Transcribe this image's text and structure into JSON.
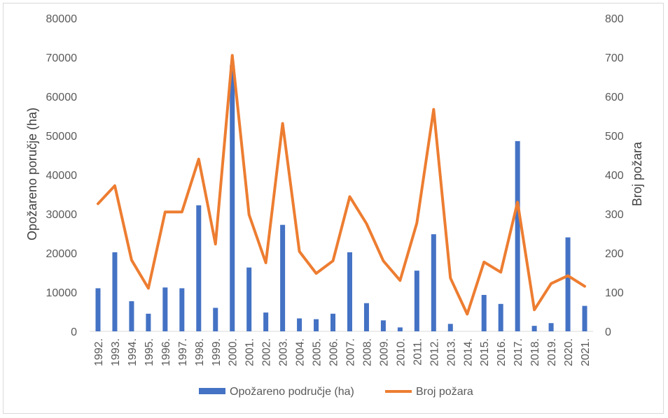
{
  "chart_data": {
    "type": "bar",
    "categories": [
      "1992.",
      "1993.",
      "1994.",
      "1995.",
      "1996.",
      "1997.",
      "1998.",
      "1999.",
      "2000.",
      "2001.",
      "2002.",
      "2003.",
      "2004.",
      "2005.",
      "2006.",
      "2007.",
      "2008.",
      "2009.",
      "2010.",
      "2011.",
      "2012.",
      "2013.",
      "2014.",
      "2015.",
      "2016.",
      "2017.",
      "2018.",
      "2019.",
      "2020.",
      "2021."
    ],
    "series": [
      {
        "name": "Opožareno područje (ha)",
        "type": "bar",
        "axis": "left",
        "color": "#4472C4",
        "values": [
          11000,
          20200,
          7700,
          4500,
          11200,
          11000,
          32200,
          6000,
          68000,
          16300,
          4800,
          27200,
          3300,
          3100,
          4500,
          20200,
          7200,
          2800,
          1000,
          15500,
          24800,
          1900,
          0,
          9300,
          7000,
          48600,
          1400,
          2100,
          24000,
          6500
        ]
      },
      {
        "name": "Broj požara",
        "type": "line",
        "axis": "right",
        "color": "#ED7D31",
        "values": [
          326,
          372,
          182,
          110,
          305,
          305,
          440,
          223,
          705,
          298,
          175,
          531,
          204,
          148,
          180,
          344,
          275,
          180,
          130,
          277,
          567,
          136,
          44,
          177,
          151,
          330,
          55,
          122,
          142,
          115
        ]
      }
    ],
    "ylabel": "Opožareno poručje (ha)",
    "y2label": "Broj požara",
    "ylim": [
      0,
      80000
    ],
    "y2lim": [
      0,
      800
    ],
    "yticks": [
      "0",
      "10000",
      "20000",
      "30000",
      "40000",
      "50000",
      "60000",
      "70000",
      "80000"
    ],
    "y2ticks": [
      "0",
      "100",
      "200",
      "300",
      "400",
      "500",
      "600",
      "700",
      "800"
    ],
    "grid": false,
    "legend": "bottom"
  }
}
